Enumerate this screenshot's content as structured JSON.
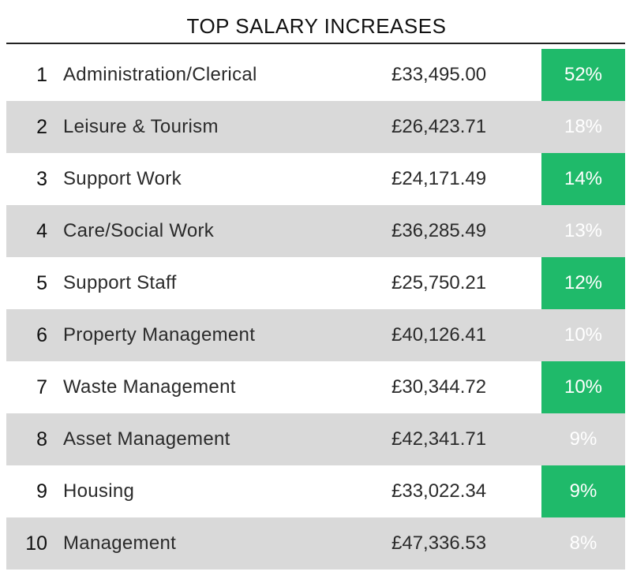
{
  "chart_data": {
    "type": "table",
    "title": "TOP SALARY INCREASES",
    "columns": [
      "",
      "",
      "",
      ""
    ],
    "rows": [
      {
        "rank": "1",
        "category": "Administration/Clerical",
        "salary": "£33,495.00",
        "increase": "52%"
      },
      {
        "rank": "2",
        "category": "Leisure & Tourism",
        "salary": "£26,423.71",
        "increase": "18%"
      },
      {
        "rank": "3",
        "category": "Support Work",
        "salary": "£24,171.49",
        "increase": "14%"
      },
      {
        "rank": "4",
        "category": "Care/Social Work",
        "salary": "£36,285.49",
        "increase": "13%"
      },
      {
        "rank": "5",
        "category": "Support Staff",
        "salary": "£25,750.21",
        "increase": "12%"
      },
      {
        "rank": "6",
        "category": "Property Management",
        "salary": "£40,126.41",
        "increase": "10%"
      },
      {
        "rank": "7",
        "category": "Waste Management",
        "salary": "£30,344.72",
        "increase": "10%"
      },
      {
        "rank": "8",
        "category": "Asset Management",
        "salary": "£42,341.71",
        "increase": "9%"
      },
      {
        "rank": "9",
        "category": "Housing",
        "salary": "£33,022.34",
        "increase": "9%"
      },
      {
        "rank": "10",
        "category": "Management",
        "salary": "£47,336.53",
        "increase": "8%"
      }
    ],
    "values": [
      52,
      18,
      14,
      13,
      12,
      10,
      10,
      9,
      9,
      8
    ],
    "colors": {
      "accent": "#1fba6a",
      "shaded_row": "#d9d9d9",
      "text": "#1a1a1a"
    }
  }
}
